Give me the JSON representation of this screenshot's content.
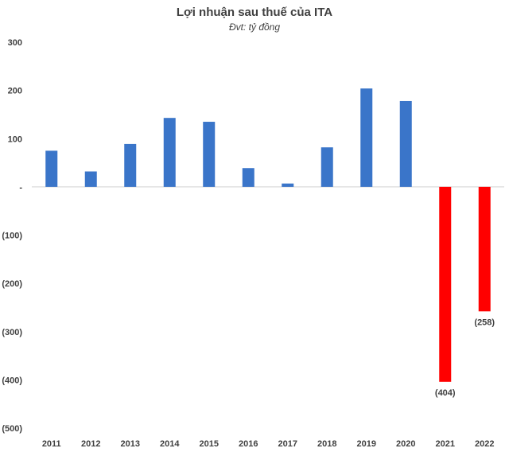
{
  "chart_data": {
    "type": "bar",
    "title": "Lợi nhuận sau thuế của ITA",
    "subtitle": "Đvt: tỷ đồng",
    "categories": [
      "2011",
      "2012",
      "2013",
      "2014",
      "2015",
      "2016",
      "2017",
      "2018",
      "2019",
      "2020",
      "2021",
      "2022"
    ],
    "values": [
      75,
      32,
      89,
      143,
      135,
      39,
      7,
      82,
      204,
      178,
      -404,
      -258
    ],
    "ylim": [
      -500,
      300
    ],
    "yticks": [
      300,
      200,
      100,
      0,
      -100,
      -200,
      -300,
      -400,
      -500
    ],
    "ytick_labels": [
      "300",
      "200",
      "100",
      "-",
      "(100)",
      "(200)",
      "(300)",
      "(400)",
      "(500)"
    ],
    "data_labels": [
      {
        "index": 10,
        "text": "(404)"
      },
      {
        "index": 11,
        "text": "(258)"
      }
    ],
    "positive_color": "#3A75C9",
    "negative_color": "#FF0000",
    "grid": false,
    "legend": "none"
  }
}
